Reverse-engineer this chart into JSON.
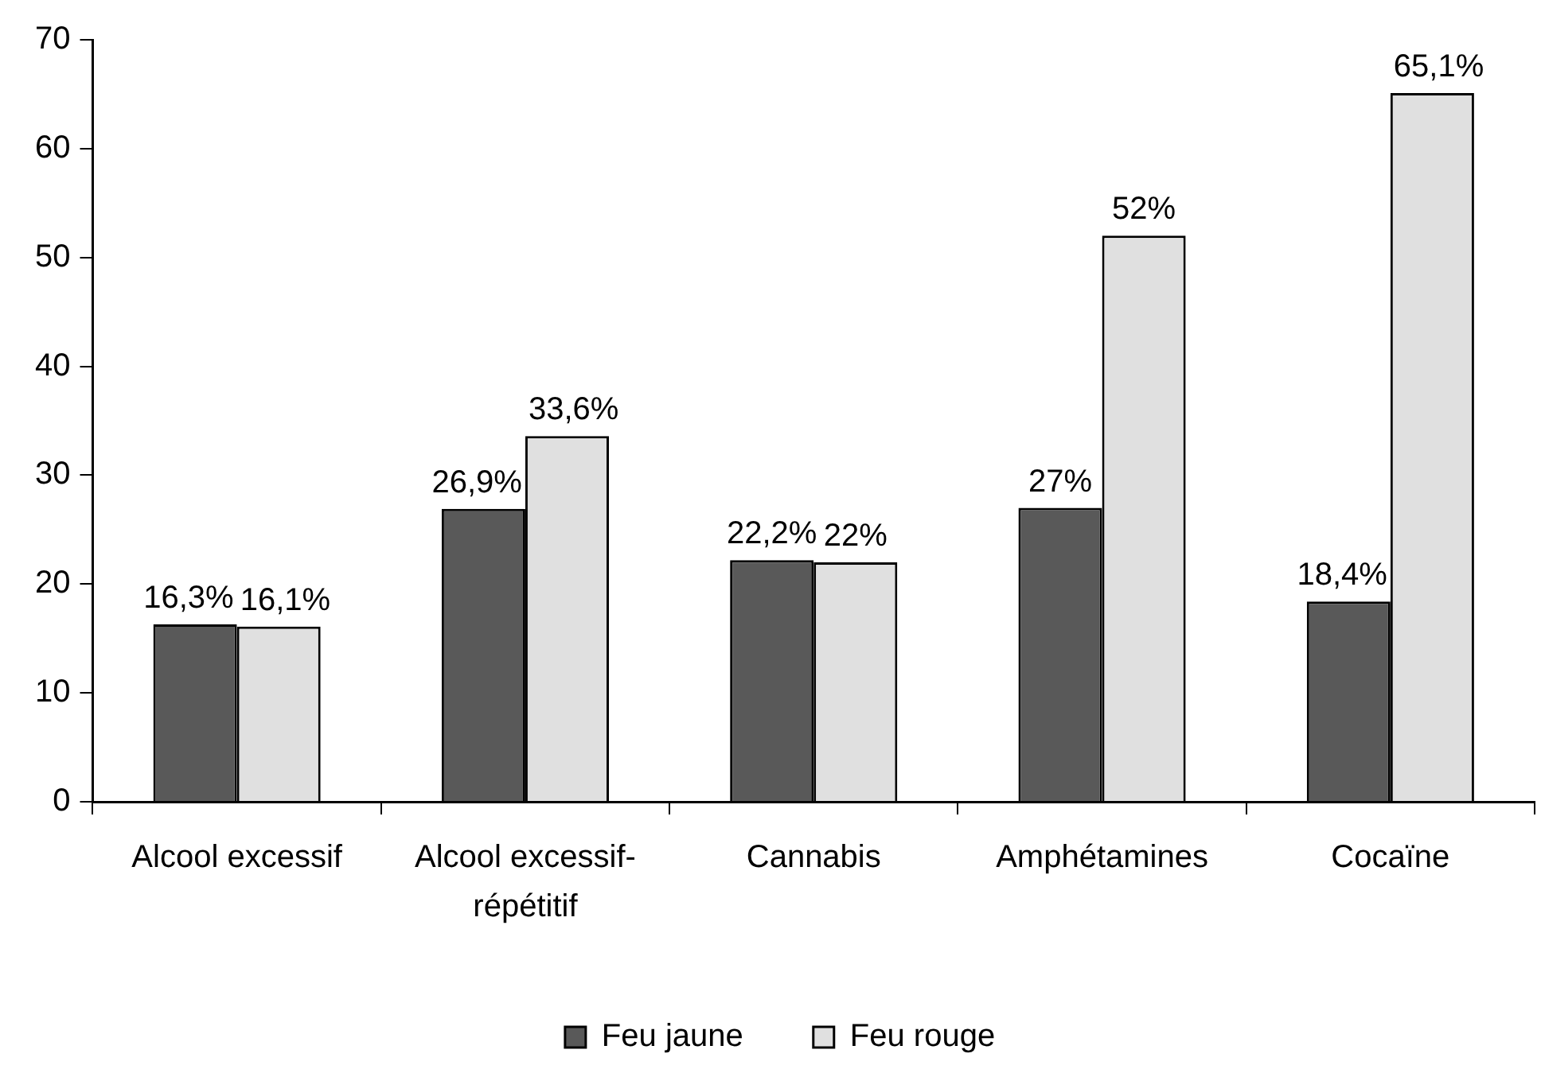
{
  "chart_data": {
    "type": "bar",
    "categories": [
      "Alcool excessif",
      "Alcool excessif-répétitif",
      "Cannabis",
      "Amphétamines",
      "Cocaïne"
    ],
    "series": [
      {
        "name": "Feu jaune",
        "color": "#595959",
        "values": [
          16.3,
          26.9,
          22.2,
          27,
          18.4
        ],
        "value_labels": [
          "16,3%",
          "26,9%",
          "22,2%",
          "27%",
          "18,4%"
        ]
      },
      {
        "name": "Feu rouge",
        "color": "#e0e0e0",
        "values": [
          16.1,
          33.6,
          22,
          52,
          65.1
        ],
        "value_labels": [
          "16,1%",
          "33,6%",
          "22%",
          "52%",
          "65,1%"
        ]
      }
    ],
    "ylim": [
      0,
      70
    ],
    "yticks": [
      0,
      10,
      20,
      30,
      40,
      50,
      60,
      70
    ],
    "legend": "bottom"
  }
}
